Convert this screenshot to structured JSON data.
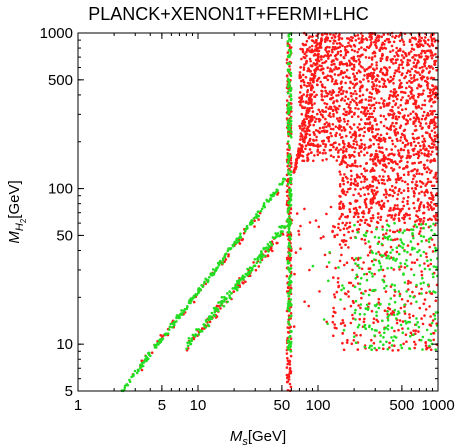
{
  "chart_data": {
    "type": "scatter",
    "title": "PLANCK+XENON1T+FERMI+LHC",
    "xlabel": "M_s[GeV]",
    "ylabel": "M_H2[GeV]",
    "xscale": "log",
    "yscale": "log",
    "xlim": [
      1,
      1000
    ],
    "ylim": [
      5,
      1000
    ],
    "x_ticks": [
      {
        "value": 1,
        "label": "1"
      },
      {
        "value": 5,
        "label": "5"
      },
      {
        "value": 10,
        "label": "10"
      },
      {
        "value": 50,
        "label": "50"
      },
      {
        "value": 100,
        "label": "100"
      },
      {
        "value": 500,
        "label": "500"
      },
      {
        "value": 1000,
        "label": "1000"
      }
    ],
    "y_ticks": [
      {
        "value": 5,
        "label": "5"
      },
      {
        "value": 10,
        "label": "10"
      },
      {
        "value": 50,
        "label": "50"
      },
      {
        "value": 100,
        "label": "100"
      },
      {
        "value": 500,
        "label": "500"
      },
      {
        "value": 1000,
        "label": "1000"
      }
    ],
    "grid": false,
    "series": [
      {
        "color": "#ff1a1a",
        "regions": [
          {
            "shape": "line",
            "from": [
              2.5,
              5.5
            ],
            "to": [
              62,
              125
            ],
            "spread": 0.05,
            "count": 60
          },
          {
            "shape": "line",
            "from": [
              8,
              9.5
            ],
            "to": [
              62,
              62
            ],
            "spread": 0.05,
            "count": 90
          },
          {
            "shape": "band",
            "x": [
              55,
              60
            ],
            "y": [
              5,
              1000
            ],
            "count": 260
          },
          {
            "shape": "line",
            "from": [
              62,
              120
            ],
            "to": [
              110,
              1000
            ],
            "spread": 0.03,
            "count": 90
          },
          {
            "shape": "line",
            "from": [
              62,
              125
            ],
            "to": [
              90,
              300
            ],
            "spread": 0.03,
            "count": 60
          },
          {
            "shape": "box",
            "x": [
              70,
              1000
            ],
            "y": [
              150,
              1000
            ],
            "count": 1600
          },
          {
            "shape": "box",
            "x": [
              150,
              1000
            ],
            "y": [
              60,
              150
            ],
            "count": 450
          },
          {
            "shape": "box",
            "x": [
              130,
              1000
            ],
            "y": [
              9,
              60
            ],
            "count": 300
          },
          {
            "shape": "box",
            "x": [
              62,
              150
            ],
            "y": [
              10,
              110
            ],
            "count": 30
          }
        ]
      },
      {
        "color": "#22dd22",
        "regions": [
          {
            "shape": "line",
            "from": [
              2.3,
              5
            ],
            "to": [
              55,
              120
            ],
            "spread": 0.03,
            "count": 230
          },
          {
            "shape": "line",
            "from": [
              8,
              9.5
            ],
            "to": [
              58,
              62
            ],
            "spread": 0.05,
            "count": 170
          },
          {
            "shape": "band",
            "x": [
              56,
              60
            ],
            "y": [
              9,
              1000
            ],
            "count": 220
          },
          {
            "shape": "box",
            "x": [
              200,
              1000
            ],
            "y": [
              9,
              60
            ],
            "count": 260
          },
          {
            "shape": "box",
            "x": [
              80,
              200
            ],
            "y": [
              12,
              40
            ],
            "count": 12
          }
        ]
      }
    ]
  }
}
